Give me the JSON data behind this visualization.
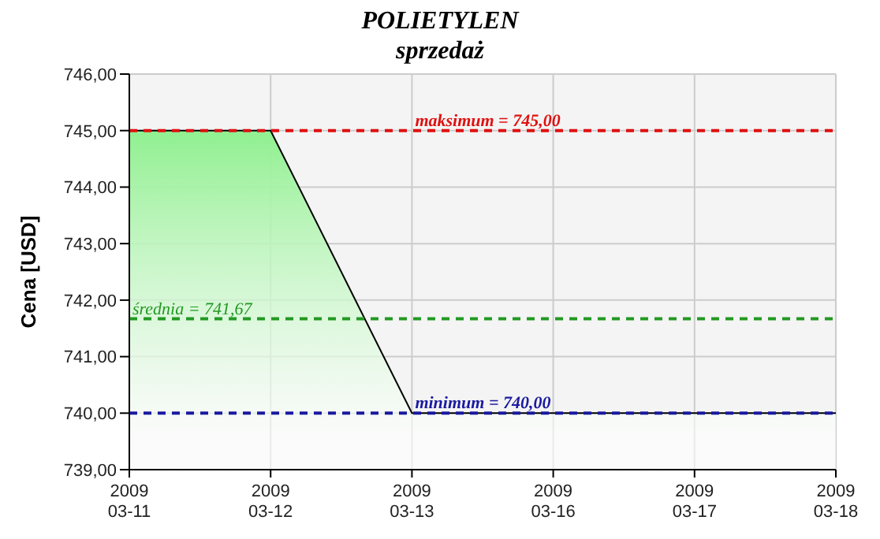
{
  "chart_data": {
    "type": "area",
    "title": "POLIETYLEN",
    "subtitle": "sprzedaż",
    "ylabel": "Cena [USD]",
    "categories": [
      "2009\n03-11",
      "2009\n03-12",
      "2009\n03-13",
      "2009\n03-16",
      "2009\n03-17",
      "2009\n03-18"
    ],
    "series": [
      {
        "color": "#90f090",
        "values": [
          745,
          745,
          740,
          740,
          740,
          740
        ]
      }
    ],
    "ylim": [
      739,
      746
    ],
    "yticks": [
      {
        "value": 739,
        "label": "739,00"
      },
      {
        "value": 740,
        "label": "740,00"
      },
      {
        "value": 741,
        "label": "741,00"
      },
      {
        "value": 742,
        "label": "742,00"
      },
      {
        "value": 743,
        "label": "743,00"
      },
      {
        "value": 744,
        "label": "744,00"
      },
      {
        "value": 745,
        "label": "745,00"
      },
      {
        "value": 746,
        "label": "746,00"
      }
    ],
    "ref_lines": [
      {
        "axis": "y",
        "value": 745,
        "label": "maksimum = 745,00",
        "color": "#e01010",
        "line_style": "dashed"
      },
      {
        "axis": "y",
        "value": 741.67,
        "label": "średnia = 741,67",
        "color": "#229922",
        "line_style": "dashed"
      },
      {
        "axis": "y",
        "value": 740,
        "label": "minimum = 740,00",
        "color": "#1a1aa0",
        "line_style": "dashed"
      }
    ],
    "grid": true,
    "legend": false
  }
}
